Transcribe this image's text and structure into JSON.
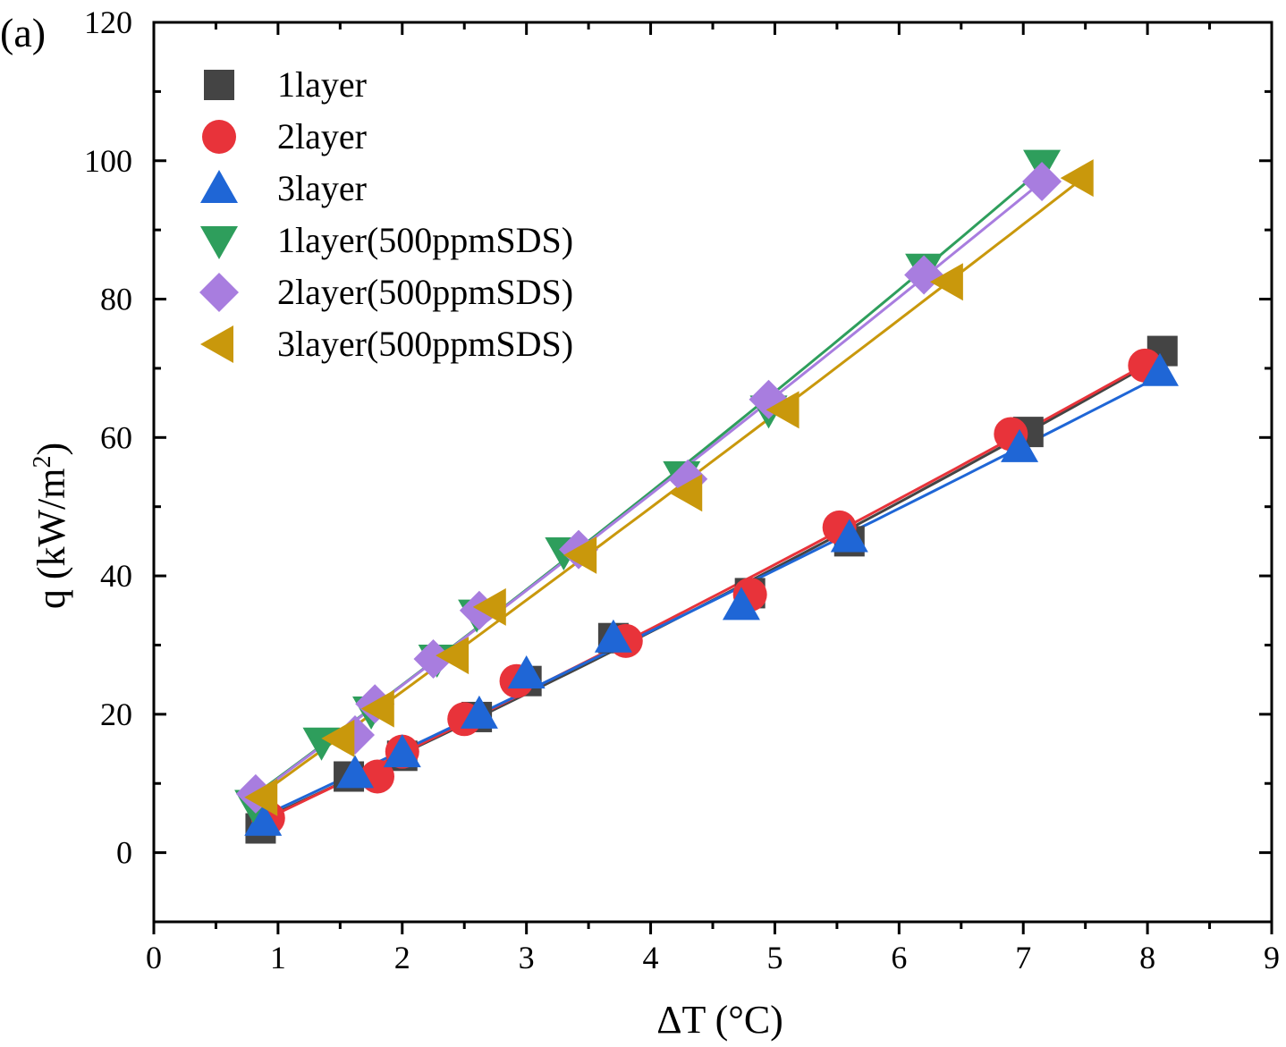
{
  "panel_label": "(a)",
  "chart_data": {
    "type": "scatter",
    "title": "",
    "xlabel": "ΔT (°C)",
    "ylabel_main": "q (kW/m",
    "ylabel_sup": "2",
    "ylabel_close": ")",
    "xlim": [
      0,
      9
    ],
    "ylim": [
      -10,
      120
    ],
    "xticks": [
      0,
      1,
      2,
      3,
      4,
      5,
      6,
      7,
      8,
      9
    ],
    "yticks": [
      0,
      20,
      40,
      60,
      80,
      100,
      120
    ],
    "legend_position": "top-left",
    "series": [
      {
        "name": "1layer",
        "marker": "square",
        "color": "#444444",
        "x": [
          0.86,
          1.57,
          2.0,
          2.6,
          3.0,
          3.7,
          4.8,
          5.6,
          7.04,
          8.12
        ],
        "y": [
          3.5,
          11.0,
          14.0,
          19.6,
          24.8,
          31.0,
          37.5,
          45.0,
          60.8,
          72.5
        ]
      },
      {
        "name": "2layer",
        "marker": "circle",
        "color": "#e8333a",
        "x": [
          0.92,
          1.8,
          2.0,
          2.5,
          2.92,
          3.8,
          4.8,
          5.52,
          6.9,
          7.98
        ],
        "y": [
          5.0,
          11.0,
          14.6,
          19.3,
          24.8,
          30.6,
          37.3,
          47.0,
          60.5,
          70.4
        ]
      },
      {
        "name": "3layer",
        "marker": "triangle-up",
        "color": "#1f66d6",
        "x": [
          0.88,
          1.62,
          2.0,
          2.62,
          3.0,
          3.7,
          4.73,
          5.6,
          6.97,
          8.1
        ],
        "y": [
          4.5,
          11.4,
          14.4,
          20.0,
          25.8,
          31.0,
          35.7,
          45.5,
          58.5,
          69.5
        ]
      },
      {
        "name": "1layer(500ppmSDS)",
        "marker": "triangle-down",
        "color": "#2e9e5c",
        "x": [
          0.8,
          1.35,
          1.75,
          2.28,
          2.6,
          3.3,
          4.25,
          4.95,
          6.2,
          7.15
        ],
        "y": [
          7.0,
          16.0,
          20.5,
          28.0,
          34.5,
          43.5,
          54.5,
          64.0,
          84.5,
          99.5
        ]
      },
      {
        "name": "2layer(500ppmSDS)",
        "marker": "diamond",
        "color": "#a87ddf",
        "x": [
          0.82,
          1.62,
          1.78,
          2.25,
          2.62,
          3.42,
          4.3,
          4.95,
          6.2,
          7.15
        ],
        "y": [
          8.5,
          17.0,
          21.5,
          28.0,
          35.0,
          43.8,
          54.0,
          65.5,
          83.5,
          97.0
        ]
      },
      {
        "name": "3layer(500ppmSDS)",
        "marker": "triangle-left",
        "color": "#c9980c",
        "x": [
          0.88,
          1.5,
          1.82,
          2.42,
          2.72,
          3.45,
          4.3,
          5.08,
          6.4,
          7.45
        ],
        "y": [
          8.0,
          16.5,
          20.8,
          28.5,
          35.5,
          43.0,
          52.0,
          64.0,
          82.5,
          97.5
        ]
      }
    ]
  }
}
